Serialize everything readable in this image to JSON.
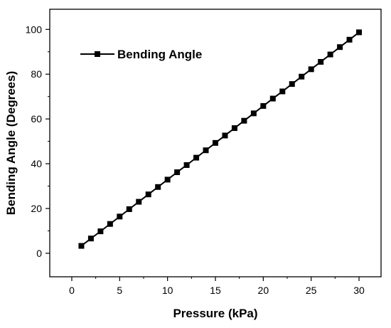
{
  "chart_data": {
    "type": "line",
    "title": "",
    "xlabel": "Pressure (kPa)",
    "ylabel": "Bending Angle (Degrees)",
    "xlim": [
      -2.3,
      32.3
    ],
    "ylim": [
      -10.5,
      109.0
    ],
    "xticks": [
      0,
      5,
      10,
      15,
      20,
      25,
      30
    ],
    "yticks": [
      0,
      20,
      40,
      60,
      80,
      100
    ],
    "grid": false,
    "legend_position": "top-left",
    "marker": "square",
    "colors": {
      "series": "#000000",
      "axis": "#000000",
      "background": "#ffffff"
    },
    "series": [
      {
        "name": "Bending Angle",
        "x": [
          1,
          2,
          3,
          4,
          5,
          6,
          7,
          8,
          9,
          10,
          11,
          12,
          13,
          14,
          15,
          16,
          17,
          18,
          19,
          20,
          21,
          22,
          23,
          24,
          25,
          26,
          27,
          28,
          29,
          30
        ],
        "y": [
          3.3,
          6.6,
          9.8,
          13.1,
          16.4,
          19.7,
          23.0,
          26.3,
          29.6,
          32.9,
          36.2,
          39.4,
          42.7,
          46.0,
          49.3,
          52.6,
          55.9,
          59.2,
          62.5,
          65.8,
          69.1,
          72.3,
          75.6,
          78.9,
          82.2,
          85.5,
          88.8,
          92.1,
          95.4,
          98.7
        ]
      }
    ]
  }
}
